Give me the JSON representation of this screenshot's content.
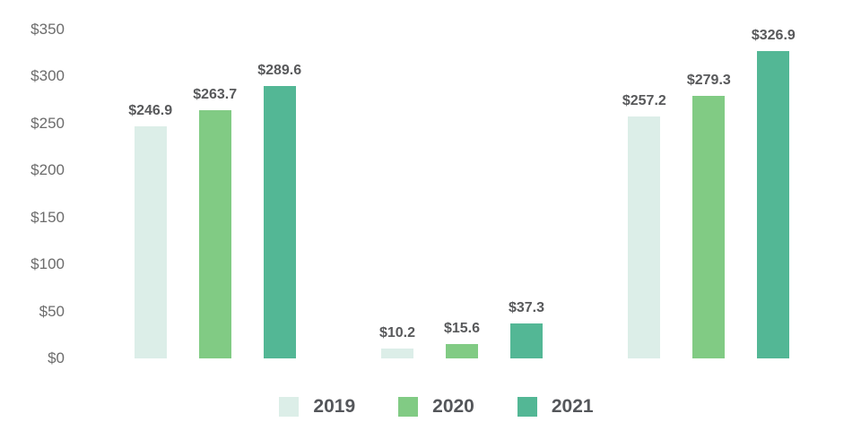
{
  "chart_data": {
    "type": "bar",
    "title": "",
    "categories": [
      "",
      "",
      ""
    ],
    "series": [
      {
        "name": "2019",
        "color": "#dceee8",
        "values": [
          246.9,
          10.2,
          257.2
        ]
      },
      {
        "name": "2020",
        "color": "#81cb84",
        "values": [
          263.7,
          15.6,
          279.3
        ]
      },
      {
        "name": "2021",
        "color": "#53b795",
        "values": [
          289.6,
          37.3,
          326.9
        ]
      }
    ],
    "data_labels": [
      "$246.9",
      "$263.7",
      "$289.6",
      "$10.2",
      "$15.6",
      "$37.3",
      "$257.2",
      "$279.3",
      "$326.9"
    ],
    "value_prefix": "$",
    "value_decimals": 1,
    "y_ticks": [
      "$350",
      "$300",
      "$250",
      "$200",
      "$150",
      "$100",
      "$50",
      "$0"
    ],
    "ylim": [
      0,
      350
    ],
    "xlabel": "",
    "ylabel": "",
    "grid": false,
    "legend_position": "bottom",
    "legend_labels": [
      "2019",
      "2020",
      "2021"
    ]
  },
  "colors": {
    "background": "#ffffff",
    "axis_tick_text": "#6c6c6c",
    "data_label_text": "#58595b",
    "legend_text": "#54565a",
    "series_2019": "#dceee8",
    "series_2020": "#81cb84",
    "series_2021": "#53b795"
  }
}
